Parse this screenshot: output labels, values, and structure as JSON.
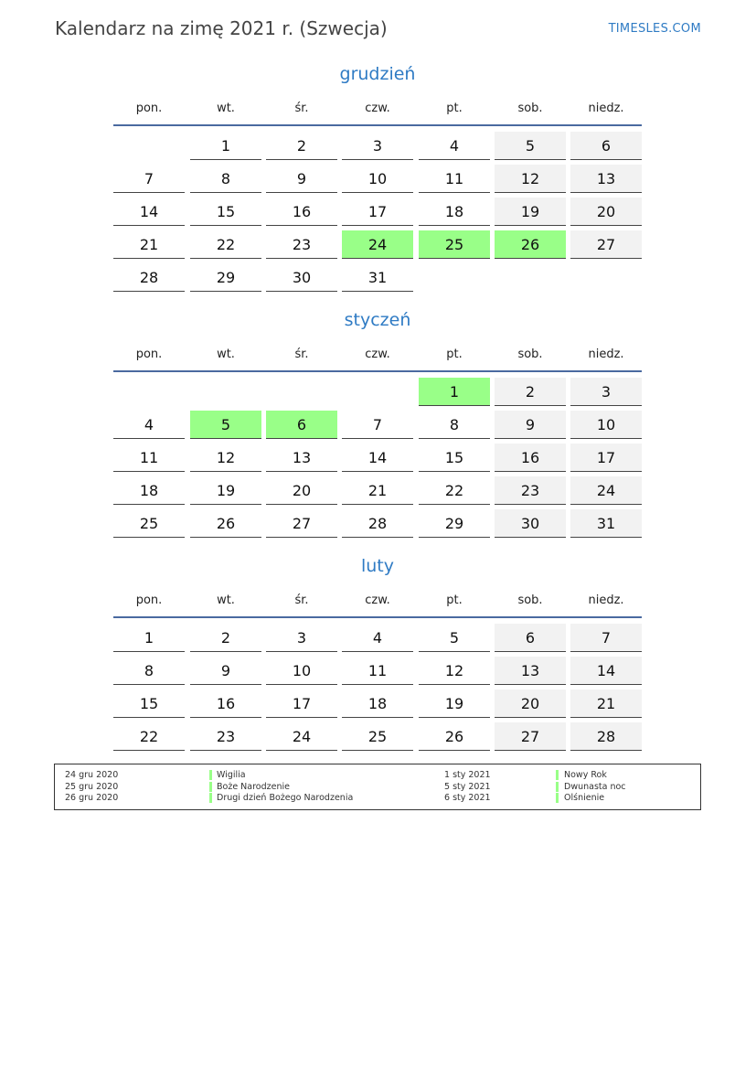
{
  "header": {
    "title": "Kalendarz na zimę 2021 r. (Szwecja)",
    "brand": "TIMESLES.COM"
  },
  "weekdays": [
    "pon.",
    "wt.",
    "śr.",
    "czw.",
    "pt.",
    "sob.",
    "niedz."
  ],
  "colors": {
    "holiday": "#99ff88",
    "weekend": "#f2f2f2",
    "accent": "#2f7bc4"
  },
  "months": [
    {
      "name": "grudzień",
      "first_weekday": 1,
      "days": 31,
      "holidays": [
        24,
        25,
        26
      ]
    },
    {
      "name": "styczeń",
      "first_weekday": 4,
      "days": 31,
      "holidays": [
        1,
        5,
        6
      ]
    },
    {
      "name": "luty",
      "first_weekday": 0,
      "days": 28,
      "holidays": []
    }
  ],
  "legend": [
    {
      "date": "24 gru 2020",
      "name": "Wigilia"
    },
    {
      "date": "25 gru 2020",
      "name": "Boże Narodzenie"
    },
    {
      "date": "26 gru 2020",
      "name": "Drugi dzień Bożego Narodzenia"
    },
    {
      "date": "1 sty 2021",
      "name": "Nowy Rok"
    },
    {
      "date": "5 sty 2021",
      "name": "Dwunasta noc"
    },
    {
      "date": "6 sty 2021",
      "name": "Olśnienie"
    }
  ]
}
